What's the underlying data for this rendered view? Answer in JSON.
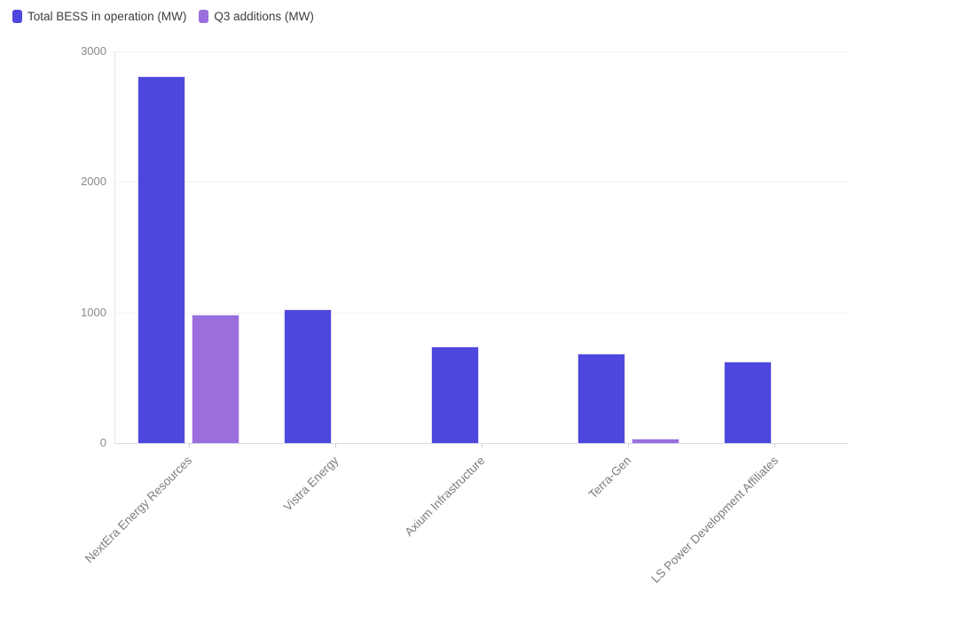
{
  "legend": {
    "items": [
      {
        "label": "Total BESS in operation (MW)",
        "color": "#4D47DD"
      },
      {
        "label": "Q3 additions (MW)",
        "color": "#9A6FDD"
      }
    ]
  },
  "chart_data": {
    "type": "bar",
    "title": "",
    "xlabel": "",
    "ylabel": "",
    "categories": [
      "NextEra Energy Resources",
      "Vistra Energy",
      "Axium Infrastructure",
      "Terra-Gen",
      "LS Power Development Affiliates"
    ],
    "series": [
      {
        "name": "Total BESS in operation (MW)",
        "color": "#4D47DD",
        "values": [
          2800,
          1020,
          735,
          680,
          615
        ]
      },
      {
        "name": "Q3 additions (MW)",
        "color": "#9A6FDD",
        "values": [
          975,
          0,
          0,
          30,
          0
        ]
      }
    ],
    "ylim": [
      0,
      3000
    ],
    "yticks": [
      0,
      1000,
      2000,
      3000
    ],
    "grid": true,
    "legend_position": "top-left"
  }
}
